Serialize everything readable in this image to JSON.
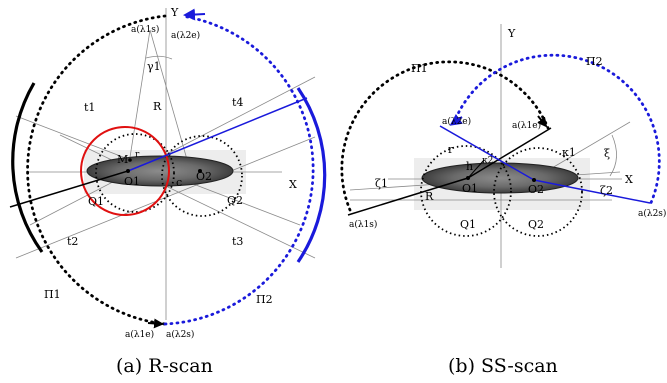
{
  "panel_a": {
    "caption": "(a) R-scan",
    "axis_x": "X",
    "axis_y": "Y",
    "a_l1s": "a(λ1s)",
    "a_l2e": "a(λ2e)",
    "a_l1e": "a(λ1e)",
    "a_l2s": "a(λ2s)",
    "gamma1": "γ1",
    "R": "R",
    "t1": "t1",
    "t2": "t2",
    "t3": "t3",
    "t4": "t4",
    "M": "M",
    "r": "r",
    "O1": "O1",
    "O2": "O2",
    "c": "c",
    "Q1": "Q1",
    "Q2": "Q2",
    "Pi1": "Π1",
    "Pi2": "Π2"
  },
  "panel_b": {
    "caption": "(b) SS-scan",
    "axis_x": "X",
    "axis_y": "Y",
    "Pi1": "Π1",
    "Pi2": "Π2",
    "a_l2e": "a(λ2e)",
    "a_l1e": "a(λ1e)",
    "a_l1s": "a(λ1s)",
    "a_l2s": "a(λ2s)",
    "zeta1": "ζ1",
    "zeta2": "ζ2",
    "kappa1": "κ1",
    "kappa2": "κ2",
    "xi": "ξ",
    "r": "r",
    "h": "h",
    "R": "R",
    "O1": "O1",
    "O2": "O2",
    "Q1": "Q1",
    "Q2": "Q2"
  },
  "colors": {
    "blue": "#1a1adb",
    "red": "#e01010",
    "black": "#000000",
    "ellipse_fill": "#5a5a5a"
  }
}
